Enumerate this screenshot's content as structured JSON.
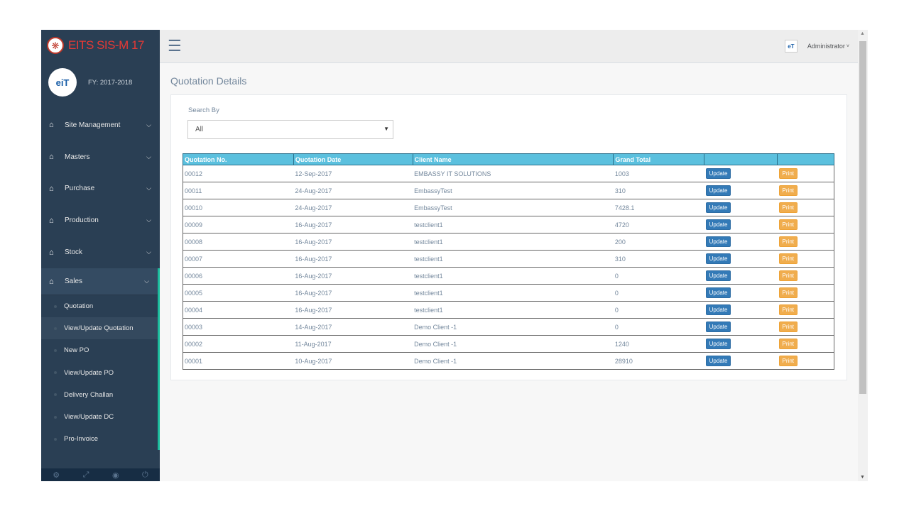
{
  "brand": {
    "logo_icon": "paw-icon",
    "title": "EITS SIS-M 17"
  },
  "profile": {
    "avatar_text": "eiT",
    "fy": "FY: 2017-2018"
  },
  "sidebar": {
    "items": [
      {
        "label": "Site Management"
      },
      {
        "label": "Masters"
      },
      {
        "label": "Purchase"
      },
      {
        "label": "Production"
      },
      {
        "label": "Stock"
      },
      {
        "label": "Sales"
      }
    ],
    "sales_sub": [
      {
        "label": "Quotation"
      },
      {
        "label": "View/Update Quotation"
      },
      {
        "label": "New PO"
      },
      {
        "label": "View/Update PO"
      },
      {
        "label": "Delivery Challan"
      },
      {
        "label": "View/Update DC"
      },
      {
        "label": "Pro-Invoice"
      }
    ]
  },
  "topbar": {
    "user": "Administrator"
  },
  "page": {
    "title": "Quotation Details",
    "search_label": "Search By",
    "search_value": "All"
  },
  "table": {
    "headers": [
      "Quotation No.",
      "Quotation Date",
      "Client Name",
      "Grand Total",
      "",
      ""
    ],
    "update_label": "Update",
    "print_label": "Print",
    "rows": [
      [
        "00012",
        "12-Sep-2017",
        "EMBASSY IT SOLUTIONS",
        "1003"
      ],
      [
        "00011",
        "24-Aug-2017",
        "EmbassyTest",
        "310"
      ],
      [
        "00010",
        "24-Aug-2017",
        "EmbassyTest",
        "7428.1"
      ],
      [
        "00009",
        "16-Aug-2017",
        "testclient1",
        "4720"
      ],
      [
        "00008",
        "16-Aug-2017",
        "testclient1",
        "200"
      ],
      [
        "00007",
        "16-Aug-2017",
        "testclient1",
        "310"
      ],
      [
        "00006",
        "16-Aug-2017",
        "testclient1",
        "0"
      ],
      [
        "00005",
        "16-Aug-2017",
        "testclient1",
        "0"
      ],
      [
        "00004",
        "16-Aug-2017",
        "testclient1",
        "0"
      ],
      [
        "00003",
        "14-Aug-2017",
        "Demo Client -1",
        "0"
      ],
      [
        "00002",
        "11-Aug-2017",
        "Demo Client -1",
        "1240"
      ],
      [
        "00001",
        "10-Aug-2017",
        "Demo Client -1",
        "28910"
      ]
    ]
  },
  "colors": {
    "sidebar": "#2a3f54",
    "accent": "#1abb9c",
    "table_header": "#5bc0de",
    "update_button": "#337ab7",
    "print_button": "#f0ad4e",
    "brand_red": "#e53935"
  }
}
